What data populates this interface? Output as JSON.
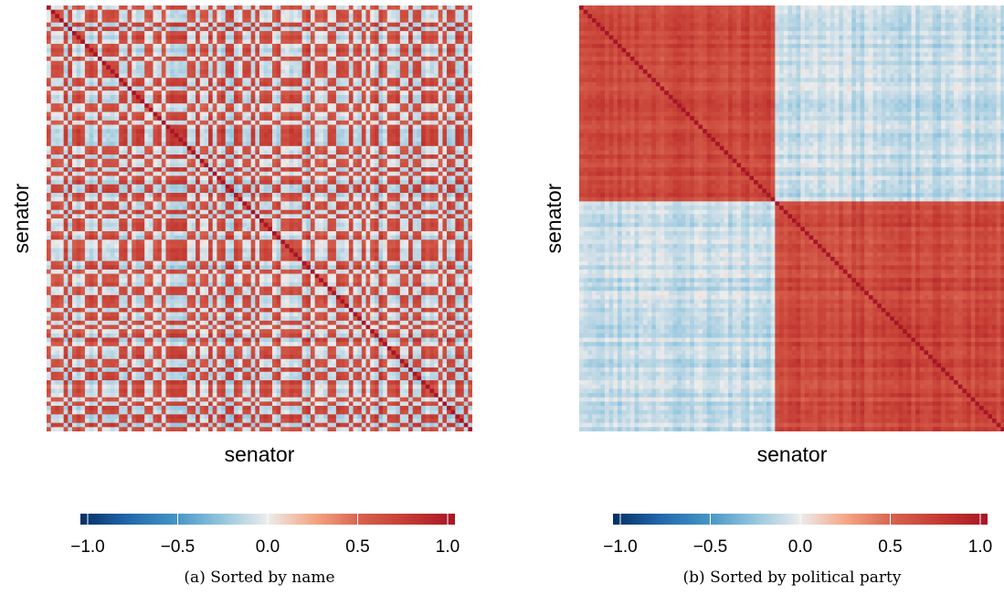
{
  "chart_data": [
    {
      "type": "heatmap",
      "caption": "(a) Sorted by name",
      "xlabel": "senator",
      "ylabel": "senator",
      "n": 100,
      "ordering": "alphabetical by name (parties interleaved)",
      "value_range": [
        -1.0,
        1.0
      ],
      "colormap": "RdBu (reversed: blue = -1, red = +1)",
      "colorbar_ticks": [
        "−1.0",
        "−0.5",
        "0.0",
        "0.5",
        "1.0"
      ],
      "diagonal_value": 1.0,
      "same_party_value_approx": 0.75,
      "cross_party_value_approx": -0.05
    },
    {
      "type": "heatmap",
      "caption": "(b) Sorted by political party",
      "xlabel": "senator",
      "ylabel": "senator",
      "n": 100,
      "ordering": "grouped by political party",
      "blocks": [
        {
          "group": "party 1",
          "count": 46
        },
        {
          "group": "party 2",
          "count": 54
        }
      ],
      "value_range": [
        -1.0,
        1.0
      ],
      "colormap": "RdBu (reversed: blue = -1, red = +1)",
      "colorbar_ticks": [
        "−1.0",
        "−0.5",
        "0.0",
        "0.5",
        "1.0"
      ],
      "diagonal_value": 1.0,
      "same_party_value_approx": 0.75,
      "cross_party_value_approx": -0.05
    }
  ]
}
